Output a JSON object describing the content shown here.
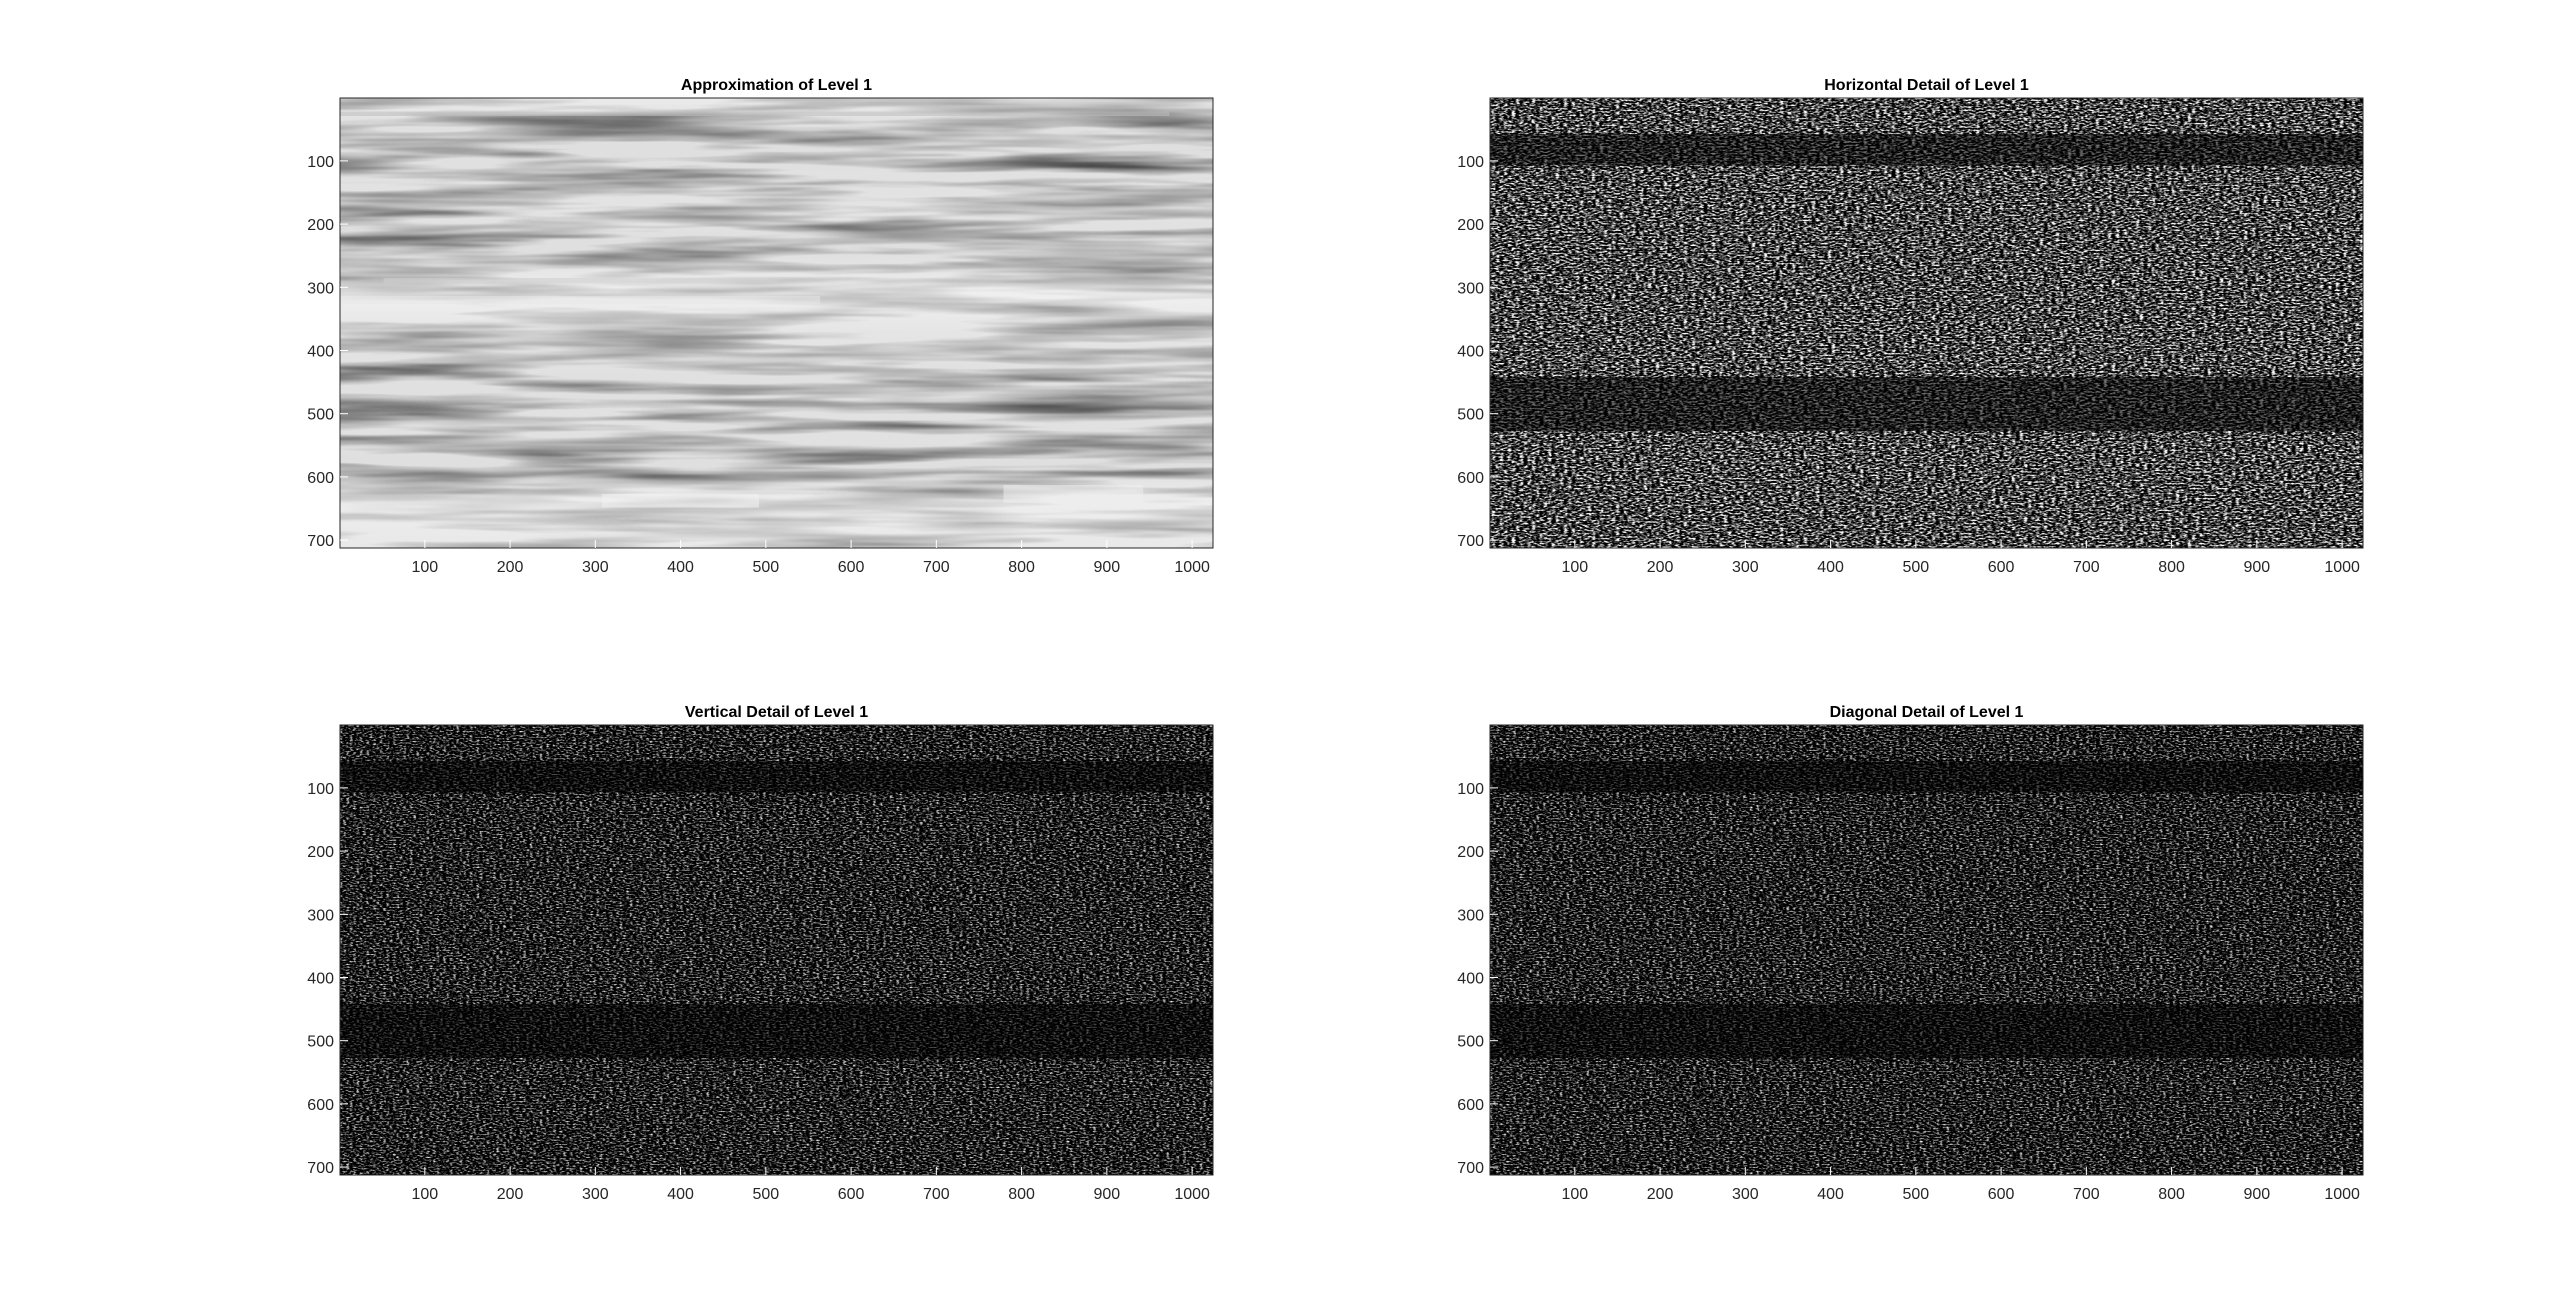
{
  "figure": {
    "background": "#ffffff",
    "axes_color": "#262626",
    "tick_label_color": "#262626"
  },
  "chart_data": [
    {
      "type": "heatmap",
      "title": "Approximation of Level 1",
      "colormap": "gray",
      "style": "approximation",
      "xlim": [
        0.5,
        1024.5
      ],
      "ylim": [
        0.5,
        712.5
      ],
      "y_reversed": true,
      "xticks": [
        100,
        200,
        300,
        400,
        500,
        600,
        700,
        800,
        900,
        1000
      ],
      "yticks": [
        100,
        200,
        300,
        400,
        500,
        600,
        700
      ],
      "xtick_labels": [
        "100",
        "200",
        "300",
        "400",
        "500",
        "600",
        "700",
        "800",
        "900",
        "1000"
      ],
      "ytick_labels": [
        "100",
        "200",
        "300",
        "400",
        "500",
        "600",
        "700"
      ],
      "grid": false
    },
    {
      "type": "heatmap",
      "title": "Horizontal Detail of Level 1",
      "colormap": "gray",
      "style": "detail-strong",
      "xlim": [
        0.5,
        1024.5
      ],
      "ylim": [
        0.5,
        712.5
      ],
      "y_reversed": true,
      "xticks": [
        100,
        200,
        300,
        400,
        500,
        600,
        700,
        800,
        900,
        1000
      ],
      "yticks": [
        100,
        200,
        300,
        400,
        500,
        600,
        700
      ],
      "xtick_labels": [
        "100",
        "200",
        "300",
        "400",
        "500",
        "600",
        "700",
        "800",
        "900",
        "1000"
      ],
      "ytick_labels": [
        "100",
        "200",
        "300",
        "400",
        "500",
        "600",
        "700"
      ],
      "grid": false
    },
    {
      "type": "heatmap",
      "title": "Vertical Detail of Level 1",
      "colormap": "gray",
      "style": "detail-weak",
      "xlim": [
        0.5,
        1024.5
      ],
      "ylim": [
        0.5,
        712.5
      ],
      "y_reversed": true,
      "xticks": [
        100,
        200,
        300,
        400,
        500,
        600,
        700,
        800,
        900,
        1000
      ],
      "yticks": [
        100,
        200,
        300,
        400,
        500,
        600,
        700
      ],
      "xtick_labels": [
        "100",
        "200",
        "300",
        "400",
        "500",
        "600",
        "700",
        "800",
        "900",
        "1000"
      ],
      "ytick_labels": [
        "100",
        "200",
        "300",
        "400",
        "500",
        "600",
        "700"
      ],
      "grid": false
    },
    {
      "type": "heatmap",
      "title": "Diagonal Detail of Level 1",
      "colormap": "gray",
      "style": "detail-weak",
      "xlim": [
        0.5,
        1024.5
      ],
      "ylim": [
        0.5,
        712.5
      ],
      "y_reversed": true,
      "xticks": [
        100,
        200,
        300,
        400,
        500,
        600,
        700,
        800,
        900,
        1000
      ],
      "yticks": [
        100,
        200,
        300,
        400,
        500,
        600,
        700
      ],
      "xtick_labels": [
        "100",
        "200",
        "300",
        "400",
        "500",
        "600",
        "700",
        "800",
        "900",
        "1000"
      ],
      "ytick_labels": [
        "100",
        "200",
        "300",
        "400",
        "500",
        "600",
        "700"
      ],
      "grid": false
    }
  ]
}
